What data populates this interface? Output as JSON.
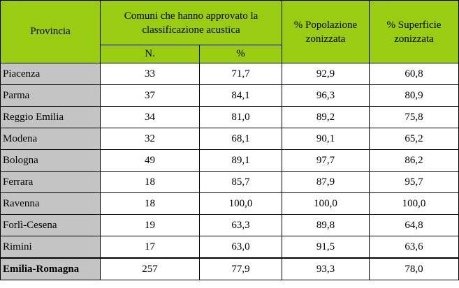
{
  "header": {
    "provincia": "Provincia",
    "comuni": "Comuni che hanno approvato la classificazione acustica",
    "n": "N.",
    "pct": "%",
    "popolazione": "% Popolazione zonizzata",
    "superficie": "% Superficie zonizzata"
  },
  "colors": {
    "header_bg": "#9acd11",
    "province_bg": "#c4c4c4"
  },
  "rows": [
    {
      "provincia": "Piacenza",
      "n": "33",
      "pct": "71,7",
      "pop": "92,9",
      "sup": "60,8"
    },
    {
      "provincia": "Parma",
      "n": "37",
      "pct": "84,1",
      "pop": "96,3",
      "sup": "80,9"
    },
    {
      "provincia": "Reggio Emilia",
      "n": "34",
      "pct": "81,0",
      "pop": "89,2",
      "sup": "75,8"
    },
    {
      "provincia": "Modena",
      "n": "32",
      "pct": "68,1",
      "pop": "90,1",
      "sup": "65,2"
    },
    {
      "provincia": "Bologna",
      "n": "49",
      "pct": "89,1",
      "pop": "97,7",
      "sup": "86,2"
    },
    {
      "provincia": "Ferrara",
      "n": "18",
      "pct": "85,7",
      "pop": "87,9",
      "sup": "95,7"
    },
    {
      "provincia": "Ravenna",
      "n": "18",
      "pct": "100,0",
      "pop": "100,0",
      "sup": "100,0"
    },
    {
      "provincia": "Forlì-Cesena",
      "n": "19",
      "pct": "63,3",
      "pop": "89,8",
      "sup": "64,8"
    },
    {
      "provincia": "Rimini",
      "n": "17",
      "pct": "63,0",
      "pop": "91,5",
      "sup": "63,6"
    }
  ],
  "total": {
    "provincia": "Emilia-Romagna",
    "n": "257",
    "pct": "77,9",
    "pop": "93,3",
    "sup": "78,0"
  }
}
